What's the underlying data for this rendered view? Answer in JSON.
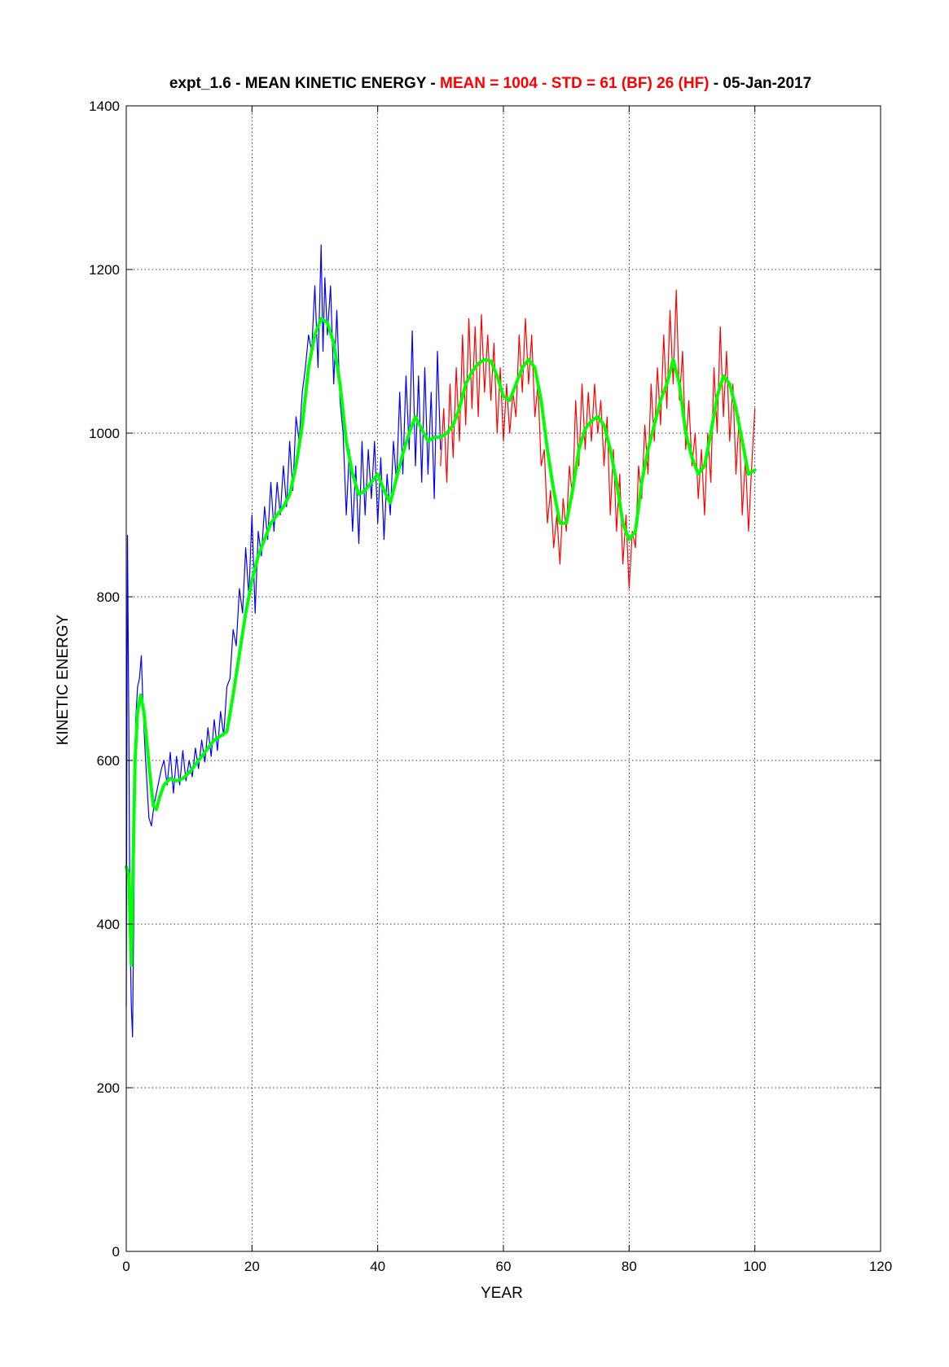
{
  "chart_data": {
    "type": "line",
    "title": {
      "prefix": "expt_1.6 - MEAN KINETIC ENERGY - ",
      "stats": "MEAN =  1004 - STD =   61 (BF)   26 (HF)",
      "suffix": " - 05-Jan-2017"
    },
    "xlabel": "YEAR",
    "ylabel": "KINETIC ENERGY",
    "xlim": [
      0,
      120
    ],
    "ylim": [
      0,
      1400
    ],
    "xticks": [
      0,
      20,
      40,
      60,
      80,
      100,
      120
    ],
    "yticks": [
      0,
      200,
      400,
      600,
      800,
      1000,
      1200,
      1400
    ],
    "grid": true,
    "colors": {
      "title": "#000000",
      "stats": "#ff0000",
      "raw_first_half": "#0000ff",
      "raw_second_half": "#ff0000",
      "smoothed": "#00ff00",
      "grid": "#000000"
    },
    "series": [
      {
        "role": "raw",
        "color": "#0000ff",
        "x": [
          0,
          0.2,
          0.4,
          0.6,
          0.8,
          1.0,
          1.2,
          1.5,
          1.8,
          2.1,
          2.4,
          2.7,
          3.0,
          3.3,
          3.6,
          4.0,
          4.4,
          4.8,
          5.2,
          5.6,
          6.0,
          6.5,
          7.0,
          7.5,
          8.0,
          8.5,
          9.0,
          9.5,
          10.0,
          10.5,
          11.0,
          11.5,
          12.0,
          12.5,
          13.0,
          13.5,
          14.0,
          14.5,
          15.0,
          15.5,
          16.0,
          16.5,
          17.0,
          17.5,
          18.0,
          18.5,
          19.0,
          19.5,
          20.0,
          20.5,
          21.0,
          21.5,
          22.0,
          22.5,
          23.0,
          23.5,
          24.0,
          24.5,
          25.0,
          25.5,
          26.0,
          26.5,
          27.0,
          27.5,
          28.0,
          28.5,
          29.0,
          29.5,
          30.0,
          30.5,
          31.0,
          31.3,
          31.6,
          32.0,
          32.5,
          33.0,
          33.5,
          34.0,
          34.5,
          35.0,
          35.5,
          36.0,
          36.5,
          37.0,
          37.5,
          38.0,
          38.5,
          39.0,
          39.5,
          40.0,
          40.5,
          41.0,
          41.5,
          42.0,
          42.5,
          43.0,
          43.5,
          44.0,
          44.5,
          45.0,
          45.5,
          46.0,
          46.5,
          47.0,
          47.5,
          48.0,
          48.5,
          49.0,
          49.5,
          50.0
        ],
        "y": [
          300,
          875,
          650,
          390,
          300,
          262,
          420,
          650,
          690,
          700,
          728,
          660,
          610,
          570,
          530,
          520,
          545,
          560,
          575,
          590,
          600,
          570,
          610,
          560,
          605,
          570,
          612,
          575,
          600,
          580,
          615,
          590,
          625,
          598,
          640,
          605,
          650,
          612,
          660,
          630,
          690,
          700,
          760,
          740,
          810,
          780,
          860,
          800,
          900,
          780,
          880,
          850,
          910,
          870,
          940,
          880,
          940,
          900,
          960,
          910,
          990,
          930,
          1020,
          990,
          1050,
          1080,
          1120,
          1100,
          1180,
          1080,
          1230,
          1100,
          1190,
          1120,
          1180,
          1060,
          1150,
          1040,
          1000,
          900,
          980,
          880,
          960,
          865,
          990,
          900,
          980,
          920,
          990,
          890,
          970,
          870,
          950,
          900,
          990,
          940,
          1050,
          950,
          1070,
          980,
          1125,
          960,
          1070,
          940,
          1080,
          950,
          1050,
          920,
          1100,
          980
        ]
      },
      {
        "role": "raw",
        "color": "#ff0000",
        "x": [
          50.0,
          50.5,
          51.0,
          51.5,
          52.0,
          52.5,
          53.0,
          53.5,
          54.0,
          54.5,
          55.0,
          55.5,
          56.0,
          56.5,
          57.0,
          57.5,
          58.0,
          58.5,
          59.0,
          59.5,
          60.0,
          60.5,
          61.0,
          61.5,
          62.0,
          62.5,
          63.0,
          63.5,
          64.0,
          64.5,
          65.0,
          65.5,
          66.0,
          66.5,
          67.0,
          67.5,
          68.0,
          68.5,
          69.0,
          69.5,
          70.0,
          70.5,
          71.0,
          71.5,
          72.0,
          72.5,
          73.0,
          73.5,
          74.0,
          74.5,
          75.0,
          75.5,
          76.0,
          76.5,
          77.0,
          77.5,
          78.0,
          78.5,
          79.0,
          79.5,
          80.0,
          80.5,
          81.0,
          81.5,
          82.0,
          82.5,
          83.0,
          83.5,
          84.0,
          84.5,
          85.0,
          85.5,
          86.0,
          86.5,
          87.0,
          87.5,
          88.0,
          88.5,
          89.0,
          89.5,
          90.0,
          90.5,
          91.0,
          91.5,
          92.0,
          92.5,
          93.0,
          93.5,
          94.0,
          94.5,
          95.0,
          95.5,
          96.0,
          96.5,
          97.0,
          97.5,
          98.0,
          98.5,
          99.0,
          99.5,
          100.0
        ],
        "y": [
          960,
          1030,
          940,
          1060,
          970,
          1080,
          990,
          1120,
          1010,
          1140,
          1030,
          1130,
          1020,
          1145,
          1050,
          1120,
          1040,
          1110,
          1000,
          1080,
          990,
          1060,
          1000,
          1050,
          1020,
          1120,
          1050,
          1140,
          1060,
          1120,
          1020,
          1060,
          960,
          980,
          890,
          930,
          860,
          900,
          840,
          920,
          880,
          960,
          920,
          1040,
          960,
          1060,
          980,
          1050,
          990,
          1060,
          1000,
          1040,
          960,
          1020,
          900,
          980,
          880,
          950,
          840,
          900,
          810,
          880,
          860,
          960,
          920,
          1010,
          950,
          1060,
          990,
          1080,
          1010,
          1120,
          1030,
          1150,
          1060,
          1175,
          1040,
          1100,
          980,
          1040,
          960,
          1000,
          920,
          980,
          900,
          1000,
          940,
          1080,
          1000,
          1130,
          1020,
          1100,
          990,
          1060,
          950,
          1020,
          900,
          970,
          880,
          960,
          1030
        ]
      },
      {
        "role": "smoothed",
        "color": "#00ff00",
        "x": [
          0,
          0.4,
          0.8,
          1.1,
          1.4,
          1.8,
          2.3,
          2.8,
          3.3,
          3.8,
          4.3,
          4.8,
          5.3,
          6.0,
          7.0,
          8.0,
          9.0,
          10.0,
          11.0,
          12.0,
          13.0,
          14.0,
          15.0,
          16.0,
          17.0,
          18.0,
          19.0,
          20.0,
          21.0,
          22.0,
          23.0,
          24.0,
          25.0,
          26.0,
          27.0,
          28.0,
          29.0,
          30.0,
          31.0,
          32.0,
          33.0,
          34.0,
          35.0,
          36.0,
          37.0,
          38.0,
          39.0,
          40.0,
          41.0,
          42.0,
          43.0,
          44.0,
          45.0,
          46.0,
          47.0,
          48.0,
          49.0,
          50.0,
          51.0,
          52.0,
          53.0,
          54.0,
          55.0,
          56.0,
          57.0,
          58.0,
          59.0,
          60.0,
          61.0,
          62.0,
          63.0,
          64.0,
          65.0,
          66.0,
          67.0,
          68.0,
          69.0,
          70.0,
          71.0,
          72.0,
          73.0,
          74.0,
          75.0,
          76.0,
          77.0,
          78.0,
          79.0,
          80.0,
          81.0,
          82.0,
          83.0,
          84.0,
          85.0,
          86.0,
          87.0,
          88.0,
          89.0,
          90.0,
          91.0,
          92.0,
          93.0,
          94.0,
          95.0,
          96.0,
          97.0,
          98.0,
          99.0,
          100.0
        ],
        "y": [
          470,
          460,
          350,
          480,
          600,
          660,
          680,
          660,
          620,
          580,
          545,
          540,
          555,
          570,
          578,
          575,
          578,
          585,
          595,
          605,
          615,
          625,
          630,
          635,
          680,
          730,
          780,
          820,
          850,
          870,
          890,
          900,
          910,
          925,
          960,
          1010,
          1080,
          1120,
          1140,
          1135,
          1110,
          1060,
          990,
          950,
          925,
          930,
          940,
          950,
          930,
          915,
          945,
          975,
          1000,
          1020,
          1005,
          990,
          995,
          995,
          1000,
          1010,
          1030,
          1060,
          1075,
          1085,
          1090,
          1088,
          1070,
          1045,
          1040,
          1060,
          1080,
          1090,
          1080,
          1040,
          980,
          930,
          890,
          890,
          930,
          980,
          1005,
          1015,
          1020,
          1010,
          980,
          940,
          890,
          870,
          880,
          940,
          980,
          1010,
          1040,
          1060,
          1090,
          1060,
          1000,
          970,
          950,
          960,
          1000,
          1045,
          1070,
          1060,
          1030,
          990,
          950,
          955
        ]
      }
    ]
  }
}
